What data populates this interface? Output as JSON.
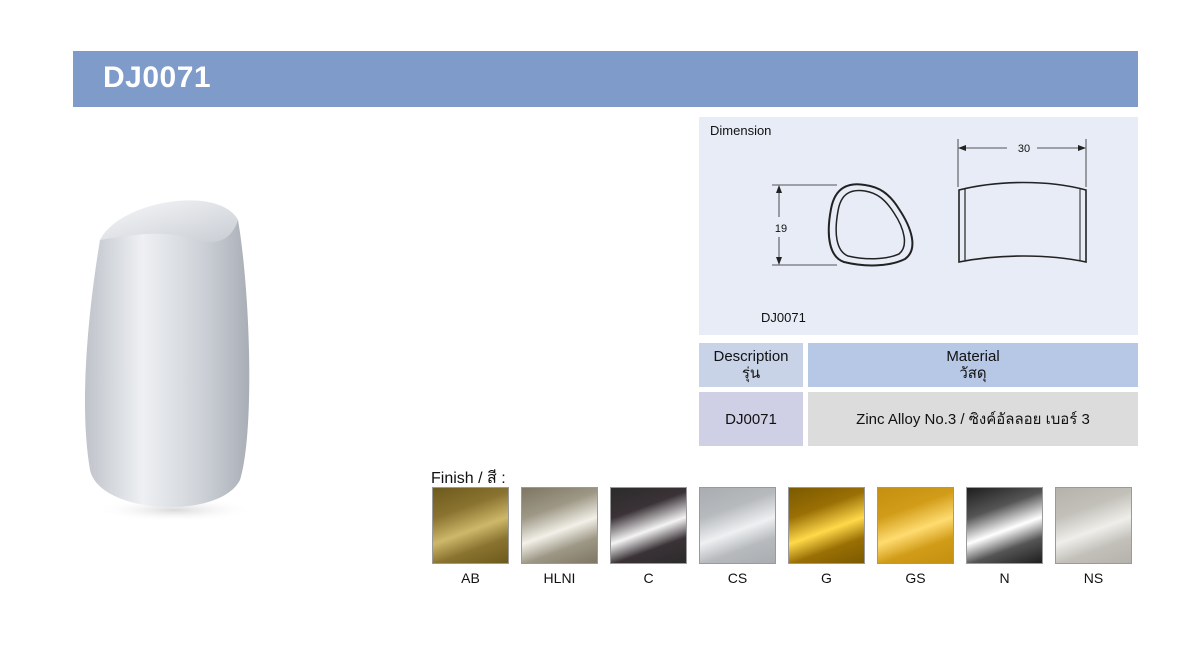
{
  "header": {
    "title": "DJ0071"
  },
  "dimension": {
    "label": "Dimension",
    "width_value": "30",
    "height_value": "19",
    "code": "DJ0071"
  },
  "table": {
    "description_header": "Description",
    "description_header_th": "รุ่น",
    "material_header": "Material",
    "material_header_th": "วัสดุ",
    "description_value": "DJ0071",
    "material_value": "Zinc Alloy No.3 / ซิงค์อัลลอย เบอร์ 3"
  },
  "finish": {
    "label": "Finish / สี :",
    "items": [
      {
        "code": "AB",
        "colors": [
          "#6d5a1c",
          "#cdb86a",
          "#8a7330"
        ]
      },
      {
        "code": "HLNI",
        "colors": [
          "#7d7663",
          "#f2f0e8",
          "#9d9785"
        ]
      },
      {
        "code": "C",
        "colors": [
          "#2b2b2b",
          "#f4f4f4",
          "#3a3236"
        ]
      },
      {
        "code": "CS",
        "colors": [
          "#a9acb0",
          "#eef0f2",
          "#b7babd"
        ]
      },
      {
        "code": "G",
        "colors": [
          "#7a5a00",
          "#ffd94a",
          "#9a6f05"
        ]
      },
      {
        "code": "GS",
        "colors": [
          "#c58f10",
          "#ffdc70",
          "#d19c18"
        ]
      },
      {
        "code": "N",
        "colors": [
          "#1e1e1e",
          "#ffffff",
          "#555555"
        ]
      },
      {
        "code": "NS",
        "colors": [
          "#b4b2ab",
          "#efeeea",
          "#c2c0b9"
        ]
      }
    ]
  }
}
